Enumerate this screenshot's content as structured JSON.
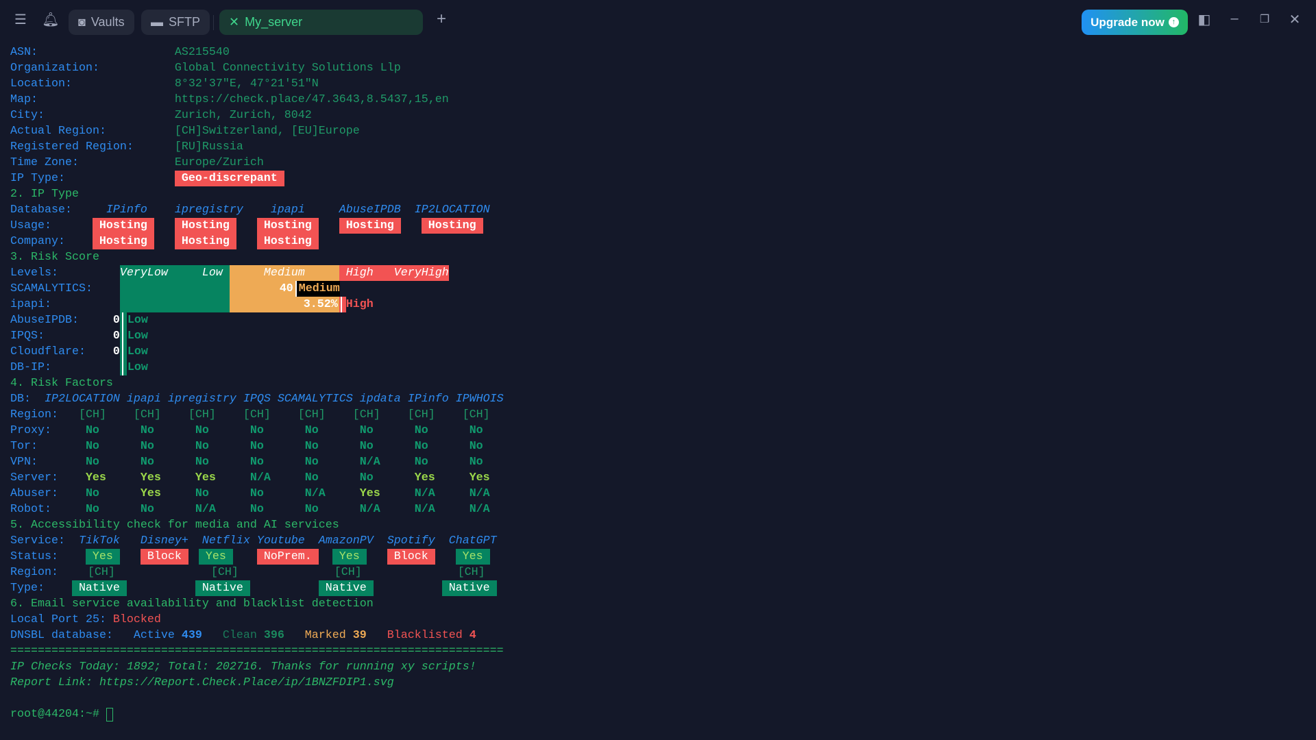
{
  "topbar": {
    "vaults": "Vaults",
    "sftp": "SFTP",
    "active_tab": "My_server",
    "upgrade": "Upgrade now",
    "accent": "#22b866"
  },
  "info": {
    "asn_l": "ASN:",
    "asn": "AS215540",
    "org_l": "Organization:",
    "org": "Global Connectivity Solutions Llp",
    "loc_l": "Location:",
    "loc": "8°32'37\"E, 47°21'51\"N",
    "map_l": "Map:",
    "map": "https://check.place/47.3643,8.5437,15,en",
    "city_l": "City:",
    "city": "Zurich, Zurich, 8042",
    "actual_l": "Actual Region:",
    "actual": "[CH]Switzerland, [EU]Europe",
    "reg_l": "Registered Region:",
    "reg": "[RU]Russia",
    "tz_l": "Time Zone:",
    "tz": "Europe/Zurich",
    "type_l": "IP Type:",
    "type": "Geo-discrepant"
  },
  "iptype": {
    "heading": "2. IP Type",
    "db_l": "Database:",
    "usage_l": "Usage:",
    "company_l": "Company:",
    "dbs": [
      "IPinfo",
      "ipregistry",
      "ipapi",
      "AbuseIPDB",
      "IP2LOCATION"
    ],
    "usage": [
      "Hosting",
      "Hosting",
      "Hosting",
      "Hosting",
      "Hosting"
    ],
    "company": [
      "Hosting",
      "Hosting",
      "Hosting"
    ]
  },
  "risk": {
    "heading": "3. Risk Score",
    "levels_l": "Levels:",
    "levels": [
      "VeryLow",
      "Low",
      "Medium",
      "High",
      "VeryHigh"
    ],
    "scam_l": "SCAMALYTICS:",
    "scam_v": "40",
    "scam_r": "Medium",
    "ipapi_l": "ipapi:",
    "ipapi_v": "3.52%",
    "ipapi_r": "High",
    "abuse_l": "AbuseIPDB:",
    "abuse_v": "0",
    "abuse_r": "Low",
    "ipqs_l": "IPQS:",
    "ipqs_v": "0",
    "ipqs_r": "Low",
    "cf_l": "Cloudflare:",
    "cf_v": "0",
    "cf_r": "Low",
    "dbip_l": "DB-IP:",
    "dbip_r": "Low"
  },
  "factors": {
    "heading": "4. Risk Factors",
    "db_l": "DB:",
    "dbs": [
      "IP2LOCATION",
      "ipapi",
      "ipregistry",
      "IPQS",
      "SCAMALYTICS",
      "ipdata",
      "IPinfo",
      "IPWHOIS"
    ],
    "rows": [
      {
        "label": "Region:",
        "values": [
          "[CH]",
          "[CH]",
          "[CH]",
          "[CH]",
          "[CH]",
          "[CH]",
          "[CH]",
          "[CH]"
        ]
      },
      {
        "label": "Proxy:",
        "values": [
          "No",
          "No",
          "No",
          "No",
          "No",
          "No",
          "No",
          "No"
        ]
      },
      {
        "label": "Tor:",
        "values": [
          "No",
          "No",
          "No",
          "No",
          "No",
          "No",
          "No",
          "No"
        ]
      },
      {
        "label": "VPN:",
        "values": [
          "No",
          "No",
          "No",
          "No",
          "No",
          "N/A",
          "No",
          "No"
        ]
      },
      {
        "label": "Server:",
        "values": [
          "Yes",
          "Yes",
          "Yes",
          "N/A",
          "No",
          "No",
          "Yes",
          "Yes"
        ]
      },
      {
        "label": "Abuser:",
        "values": [
          "No",
          "Yes",
          "No",
          "No",
          "N/A",
          "Yes",
          "N/A",
          "N/A"
        ]
      },
      {
        "label": "Robot:",
        "values": [
          "No",
          "No",
          "N/A",
          "No",
          "No",
          "N/A",
          "N/A",
          "N/A"
        ]
      }
    ]
  },
  "media": {
    "heading": "5. Accessibility check for media and AI services",
    "service_l": "Service:",
    "status_l": "Status:",
    "region_l": "Region:",
    "type_l": "Type:",
    "services": [
      "TikTok",
      "Disney+",
      "Netflix",
      "Youtube",
      "AmazonPV",
      "Spotify",
      "ChatGPT"
    ],
    "status": [
      "Yes",
      "Block",
      "Yes",
      "NoPrem.",
      "Yes",
      "Block",
      "Yes"
    ],
    "region": "[CH]",
    "type": "Native"
  },
  "email": {
    "heading": "6. Email service availability and blacklist detection",
    "port_l": "Local Port 25:",
    "port": "Blocked",
    "dnsbl_l": "DNSBL database:",
    "active_l": "Active",
    "active": "439",
    "clean_l": "Clean",
    "clean": "396",
    "marked_l": "Marked",
    "marked": "39",
    "bl_l": "Blacklisted",
    "bl": "4"
  },
  "footer": {
    "sep": "========================================================================",
    "checks": "IP Checks Today: 1892; Total: 202716. Thanks for running xy scripts!",
    "report_l": "Report Link: ",
    "report": "https://Report.Check.Place/ip/1BNZFDIP1.svg",
    "prompt": "root@44204:~#"
  }
}
